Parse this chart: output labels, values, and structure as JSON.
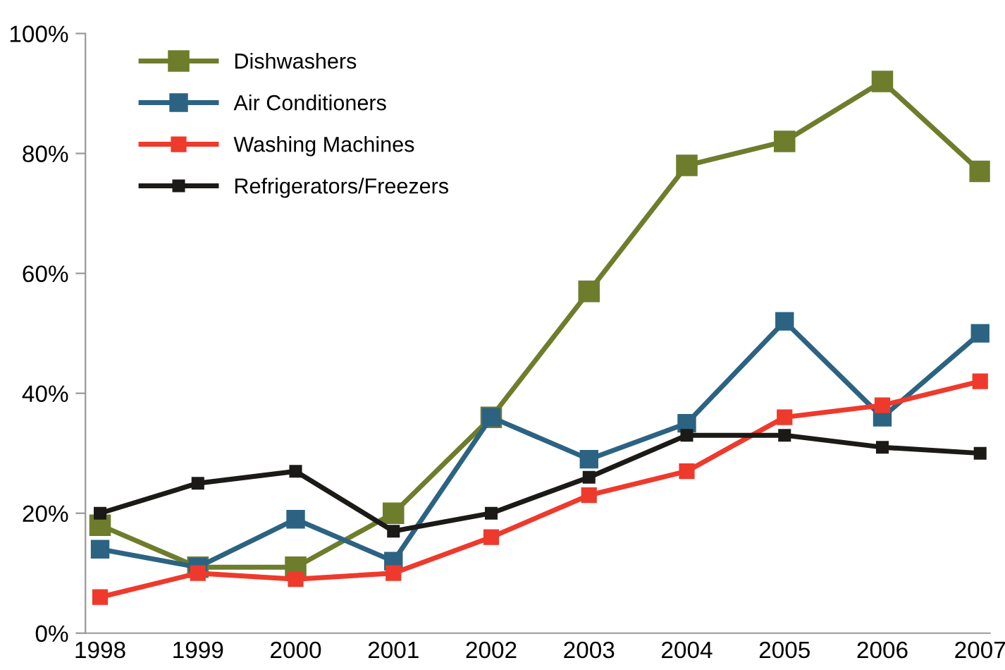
{
  "chart_data": {
    "type": "line",
    "categories": [
      "1998",
      "1999",
      "2000",
      "2001",
      "2002",
      "2003",
      "2004",
      "2005",
      "2006",
      "2007"
    ],
    "series": [
      {
        "name": "Dishwashers",
        "color": "#6e7d2c",
        "values": [
          18,
          11,
          11,
          20,
          36,
          57,
          78,
          82,
          92,
          77
        ]
      },
      {
        "name": "Air Conditioners",
        "color": "#2c6382",
        "values": [
          14,
          11,
          19,
          12,
          36,
          29,
          35,
          52,
          36,
          50
        ]
      },
      {
        "name": "Washing Machines",
        "color": "#ee3a2c",
        "values": [
          6,
          10,
          9,
          10,
          16,
          23,
          27,
          36,
          38,
          42
        ]
      },
      {
        "name": "Refrigerators/Freezers",
        "color": "#1c1a17",
        "values": [
          20,
          25,
          27,
          17,
          20,
          26,
          33,
          33,
          31,
          30
        ]
      }
    ],
    "ylim": [
      0,
      100
    ],
    "yticks": [
      {
        "value": 0,
        "label": "0%"
      },
      {
        "value": 20,
        "label": "20%"
      },
      {
        "value": 40,
        "label": "40%"
      },
      {
        "value": 60,
        "label": "60%"
      },
      {
        "value": 80,
        "label": "80%"
      },
      {
        "value": 100,
        "label": "100%"
      }
    ],
    "grid": false,
    "legend": "top left",
    "marker": "square",
    "line_style": "solid"
  }
}
